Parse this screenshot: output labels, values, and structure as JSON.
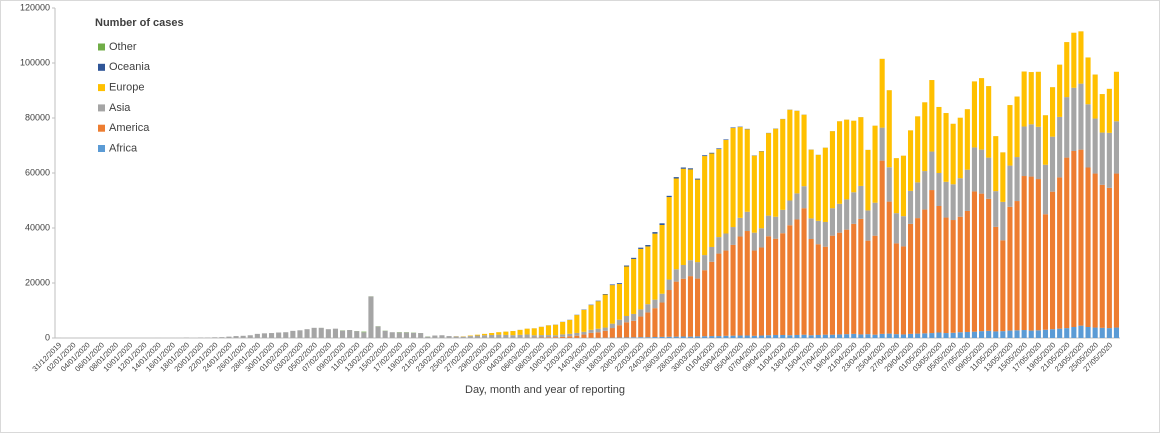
{
  "chart_data": {
    "type": "bar",
    "stacked": true,
    "legend_title": "Number of cases",
    "x_label": "Day, month and year of reporting",
    "ylim": [
      0,
      120000
    ],
    "yticks": [
      0,
      20000,
      40000,
      60000,
      80000,
      100000,
      120000
    ],
    "legend": "upper left",
    "categories": [
      "31/12/2019",
      null,
      "02/01/2020",
      null,
      "04/01/2020",
      null,
      "06/01/2020",
      null,
      "08/01/2020",
      null,
      "10/01/2020",
      null,
      "12/01/2020",
      null,
      "14/01/2020",
      null,
      "16/01/2020",
      null,
      "18/01/2020",
      null,
      "20/01/2020",
      null,
      "22/01/2020",
      null,
      "24/01/2020",
      null,
      "26/01/2020",
      null,
      "28/01/2020",
      null,
      "30/01/2020",
      null,
      "01/02/2020",
      null,
      "03/02/2020",
      null,
      "05/02/2020",
      null,
      "07/02/2020",
      null,
      "09/02/2020",
      null,
      "11/02/2020",
      null,
      "13/02/2020",
      null,
      "15/02/2020",
      null,
      "17/02/2020",
      null,
      "19/02/2020",
      null,
      "21/02/2020",
      null,
      "23/02/2020",
      null,
      "25/02/2020",
      null,
      "27/02/2020",
      null,
      "29/02/2020",
      null,
      "02/03/2020",
      null,
      "04/03/2020",
      null,
      "06/03/2020",
      null,
      "08/03/2020",
      null,
      "10/03/2020",
      null,
      "12/03/2020",
      null,
      "14/03/2020",
      null,
      "16/03/2020",
      null,
      "18/03/2020",
      null,
      "20/03/2020",
      null,
      "22/03/2020",
      null,
      "24/03/2020",
      null,
      "26/03/2020",
      null,
      "28/03/2020",
      null,
      "30/03/2020",
      null,
      "01/04/2020",
      null,
      "03/04/2020",
      null,
      "05/04/2020",
      null,
      "07/04/2020",
      null,
      "09/04/2020",
      null,
      "11/04/2020",
      null,
      "13/04/2020",
      null,
      "15/04/2020",
      null,
      "17/04/2020",
      null,
      "19/04/2020",
      null,
      "21/04/2020",
      null,
      "23/04/2020",
      null,
      "25/04/2020",
      null,
      "27/04/2020",
      null,
      "29/04/2020",
      null,
      "01/05/2020",
      null,
      "03/05/2020",
      null,
      "05/05/2020",
      null,
      "07/05/2020",
      null,
      "09/05/2020",
      null,
      "11/05/2020",
      null,
      "13/05/2020",
      null,
      "15/05/2020",
      null,
      "17/05/2020",
      null,
      "19/05/2020",
      null,
      "21/05/2020",
      null,
      "23/05/2020",
      null,
      "25/05/2020",
      null,
      "27/05/2020",
      null
    ],
    "series": [
      {
        "name": "Africa",
        "color": "#5b9bd5",
        "values": [
          0,
          0,
          0,
          0,
          0,
          0,
          0,
          0,
          0,
          0,
          0,
          0,
          0,
          0,
          0,
          0,
          0,
          0,
          0,
          0,
          0,
          0,
          0,
          0,
          0,
          0,
          0,
          0,
          0,
          0,
          0,
          0,
          0,
          0,
          0,
          0,
          0,
          0,
          0,
          0,
          0,
          0,
          0,
          0,
          0,
          0,
          0,
          0,
          0,
          0,
          0,
          0,
          0,
          0,
          0,
          0,
          0,
          0,
          0,
          0,
          0,
          0,
          0,
          0,
          1,
          2,
          3,
          5,
          8,
          10,
          15,
          20,
          30,
          40,
          50,
          60,
          80,
          100,
          120,
          150,
          200,
          250,
          300,
          300,
          350,
          400,
          450,
          500,
          550,
          500,
          600,
          650,
          700,
          700,
          800,
          850,
          900,
          900,
          800,
          900,
          1000,
          1100,
          1100,
          1000,
          1100,
          1200,
          1000,
          1100,
          1200,
          1200,
          1300,
          1400,
          1500,
          1300,
          1400,
          1200,
          1500,
          1600,
          1400,
          1300,
          1500,
          1600,
          1700,
          1800,
          2000,
          1800,
          1900,
          2100,
          2200,
          2300,
          2500,
          2600,
          2400,
          2500,
          2700,
          2800,
          2900,
          2700,
          2800,
          3000,
          3200,
          3400,
          3600,
          4000,
          4500,
          4000,
          3800,
          3700,
          3600,
          3800
        ]
      },
      {
        "name": "America",
        "color": "#ed7d31",
        "values": [
          0,
          0,
          0,
          0,
          0,
          0,
          0,
          0,
          0,
          0,
          0,
          0,
          0,
          0,
          0,
          0,
          0,
          0,
          0,
          0,
          0,
          0,
          0,
          0,
          0,
          0,
          0,
          0,
          0,
          0,
          0,
          0,
          0,
          0,
          0,
          0,
          0,
          0,
          0,
          0,
          0,
          0,
          0,
          0,
          0,
          0,
          0,
          0,
          0,
          0,
          0,
          0,
          0,
          0,
          0,
          0,
          1,
          0,
          1,
          2,
          3,
          5,
          10,
          20,
          30,
          50,
          80,
          100,
          150,
          250,
          300,
          400,
          600,
          800,
          1200,
          1800,
          2000,
          2500,
          3500,
          4500,
          5500,
          6000,
          7500,
          9000,
          10500,
          12500,
          17000,
          20000,
          21000,
          22000,
          21000,
          24000,
          27000,
          30000,
          31000,
          33000,
          36000,
          38000,
          31000,
          32000,
          36000,
          35000,
          37000,
          40000,
          42000,
          46000,
          35000,
          33000,
          32000,
          36000,
          37000,
          38000,
          40000,
          42000,
          34000,
          36000,
          63000,
          48000,
          33000,
          32000,
          40000,
          42000,
          45000,
          52000,
          46000,
          42000,
          41000,
          42000,
          44000,
          51000,
          50000,
          48000,
          38000,
          33000,
          45000,
          47000,
          56000,
          56000,
          55000,
          42000,
          50000,
          55000,
          62000,
          64000,
          64000,
          58000,
          56000,
          52000,
          51000,
          56000
        ]
      },
      {
        "name": "Asia",
        "color": "#a5a5a5",
        "values": [
          27,
          0,
          0,
          0,
          0,
          0,
          0,
          0,
          0,
          0,
          0,
          0,
          0,
          0,
          17,
          0,
          4,
          17,
          136,
          20,
          150,
          150,
          250,
          300,
          500,
          700,
          800,
          1000,
          1500,
          1700,
          1800,
          2000,
          2100,
          2600,
          2800,
          3200,
          3700,
          3700,
          3200,
          3400,
          2700,
          2900,
          2500,
          2100,
          15100,
          4200,
          2600,
          2100,
          2000,
          2000,
          1900,
          1800,
          500,
          900,
          1000,
          700,
          600,
          500,
          700,
          900,
          1000,
          1100,
          1200,
          1100,
          1000,
          1100,
          1200,
          900,
          900,
          800,
          700,
          900,
          900,
          1000,
          1000,
          1100,
          1300,
          1200,
          1600,
          2000,
          2300,
          2500,
          2600,
          3000,
          3100,
          3200,
          3800,
          4500,
          5000,
          5800,
          6000,
          5500,
          5400,
          6000,
          6200,
          6500,
          6800,
          7000,
          6500,
          7000,
          7500,
          8000,
          8500,
          9000,
          9500,
          8000,
          7500,
          8500,
          9000,
          10000,
          10500,
          11000,
          11500,
          12000,
          11000,
          12000,
          12000,
          12500,
          11000,
          11000,
          12000,
          13000,
          14000,
          14000,
          12000,
          13000,
          13000,
          14000,
          15000,
          16000,
          16000,
          15000,
          13000,
          14000,
          15000,
          16000,
          18000,
          19000,
          19000,
          18000,
          20000,
          22000,
          22000,
          23000,
          24000,
          23000,
          20000,
          19000,
          20000,
          19000
        ]
      },
      {
        "name": "Europe",
        "color": "#ffc000",
        "values": [
          0,
          0,
          0,
          0,
          0,
          0,
          0,
          0,
          0,
          0,
          0,
          0,
          0,
          0,
          0,
          0,
          0,
          0,
          0,
          0,
          0,
          0,
          0,
          0,
          0,
          0,
          0,
          0,
          0,
          0,
          0,
          0,
          0,
          0,
          0,
          0,
          0,
          0,
          0,
          0,
          0,
          0,
          0,
          0,
          0,
          0,
          0,
          0,
          0,
          0,
          0,
          0,
          0,
          0,
          0,
          0,
          50,
          100,
          200,
          300,
          500,
          700,
          900,
          1200,
          1500,
          1800,
          2100,
          2500,
          3000,
          3500,
          3800,
          4500,
          5000,
          6500,
          8000,
          9000,
          10000,
          12000,
          14000,
          13000,
          18000,
          20000,
          22000,
          21000,
          24000,
          25000,
          30000,
          33000,
          35000,
          33000,
          30000,
          36000,
          34000,
          32000,
          34000,
          36000,
          33000,
          30000,
          28000,
          28000,
          30000,
          32000,
          33000,
          33000,
          30000,
          26000,
          25000,
          24000,
          27000,
          28000,
          30000,
          29000,
          26000,
          25000,
          22000,
          28000,
          25000,
          28000,
          20000,
          22000,
          22000,
          24000,
          25000,
          26000,
          24000,
          25000,
          22000,
          22000,
          22000,
          24000,
          26000,
          26000,
          20000,
          18000,
          22000,
          22000,
          20000,
          19000,
          20000,
          18000,
          18000,
          19000,
          20000,
          20000,
          19000,
          17000,
          16000,
          14000,
          16000,
          18000
        ]
      },
      {
        "name": "Oceania",
        "color": "#2f5597",
        "values": [
          0,
          0,
          0,
          0,
          0,
          0,
          0,
          0,
          0,
          0,
          0,
          0,
          0,
          0,
          0,
          0,
          0,
          0,
          0,
          0,
          0,
          0,
          0,
          0,
          0,
          0,
          0,
          0,
          0,
          0,
          0,
          0,
          0,
          0,
          0,
          0,
          0,
          0,
          0,
          0,
          0,
          0,
          0,
          0,
          0,
          0,
          0,
          0,
          0,
          0,
          0,
          0,
          0,
          0,
          0,
          0,
          0,
          0,
          0,
          0,
          0,
          5,
          5,
          10,
          10,
          15,
          20,
          20,
          30,
          40,
          50,
          60,
          80,
          100,
          120,
          150,
          180,
          200,
          250,
          300,
          350,
          400,
          450,
          500,
          550,
          600,
          450,
          500,
          450,
          400,
          350,
          300,
          250,
          250,
          200,
          200,
          150,
          150,
          100,
          100,
          80,
          80,
          60,
          50,
          50,
          40,
          40,
          30,
          30,
          30,
          20,
          20,
          20,
          20,
          15,
          15,
          15,
          10,
          10,
          10,
          10,
          10,
          10,
          10,
          10,
          10,
          10,
          10,
          10,
          10,
          10,
          10,
          10,
          10,
          10,
          10,
          10,
          10,
          10,
          10,
          10,
          10,
          10,
          10,
          10,
          10,
          10,
          10,
          10,
          10
        ]
      },
      {
        "name": "Other",
        "color": "#70ad47",
        "values": [
          0,
          0,
          0,
          0,
          0,
          0,
          0,
          0,
          0,
          0,
          0,
          0,
          0,
          0,
          0,
          0,
          0,
          0,
          0,
          0,
          0,
          0,
          0,
          0,
          0,
          0,
          0,
          0,
          0,
          0,
          0,
          0,
          0,
          0,
          0,
          0,
          0,
          10,
          3,
          0,
          64,
          6,
          39,
          218,
          44,
          67,
          70,
          0,
          99,
          88,
          79,
          13,
          57,
          0,
          0,
          0,
          0,
          0,
          0,
          0,
          0,
          0,
          0,
          0,
          0,
          0,
          0,
          0,
          0,
          0,
          0,
          0,
          0,
          0,
          0,
          0,
          0,
          0,
          0,
          0,
          0,
          0,
          0,
          0,
          0,
          0,
          0,
          0,
          0,
          0,
          0,
          0,
          0,
          0,
          0,
          0,
          0,
          0,
          0,
          0,
          0,
          0,
          0,
          0,
          0,
          0,
          0,
          0,
          0,
          0,
          0,
          0,
          0,
          0,
          0,
          0,
          0,
          0,
          0,
          0,
          0,
          0,
          0,
          0,
          0,
          0,
          0,
          0,
          0,
          0,
          0,
          0,
          0,
          0,
          0,
          0,
          0,
          0,
          0,
          0,
          0,
          0,
          0,
          0,
          0,
          0,
          0,
          0,
          0,
          0
        ]
      }
    ]
  }
}
